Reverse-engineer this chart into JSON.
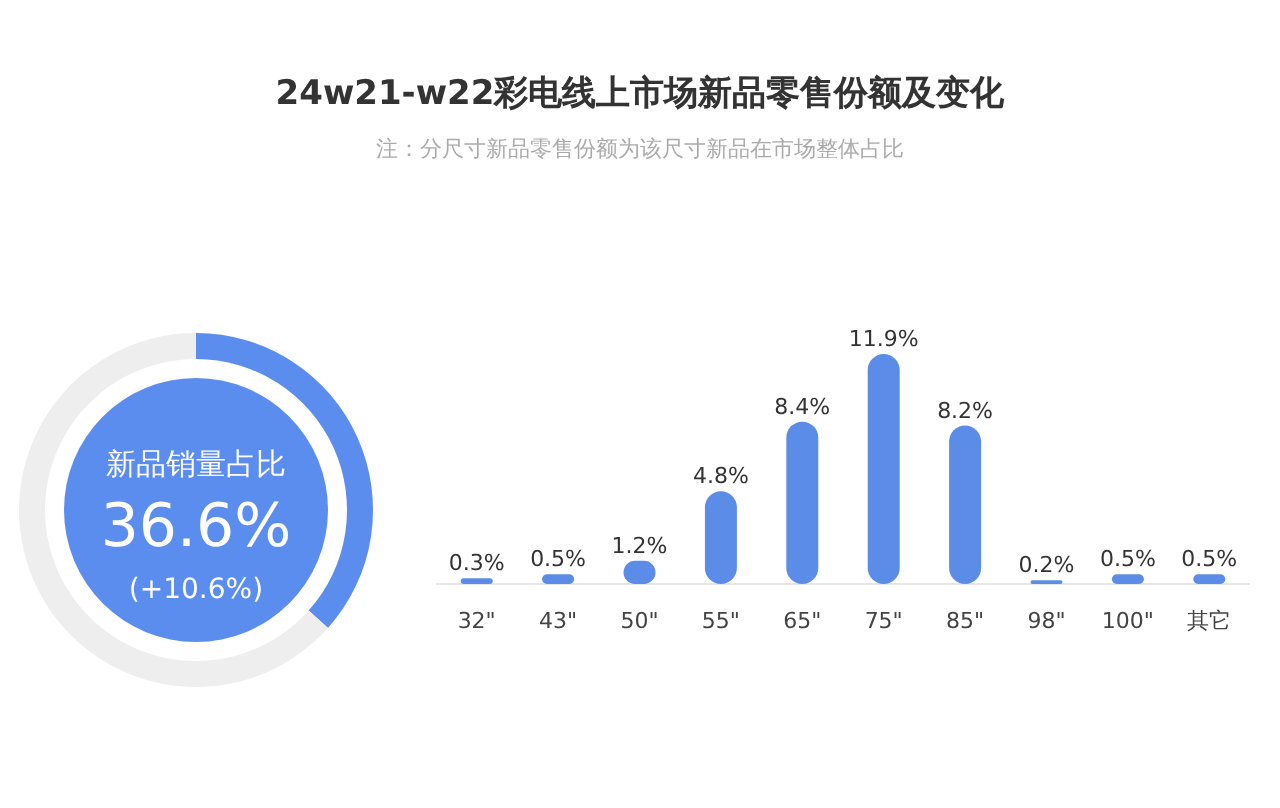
{
  "chart_data": [
    {
      "type": "donut",
      "categories": [
        "新品销量占比",
        null
      ],
      "values": [
        36.6,
        63.4
      ],
      "colors": [
        "#5b8def",
        "#eeeeee"
      ],
      "value_labels": [
        "36.6%",
        null
      ],
      "annotations": [
        "(+10.6%)"
      ]
    },
    {
      "type": "bar",
      "title": "24w21-w22彩电线上市场新品零售份额及变化",
      "subtitle": "注：分尺寸新品零售份额为该尺寸新品在市场整体占比",
      "categories": [
        "32\"",
        "43\"",
        "50\"",
        "55\"",
        "65\"",
        "75\"",
        "85\"",
        "98\"",
        "100\"",
        "其它"
      ],
      "values": [
        0.3,
        0.5,
        1.2,
        4.8,
        8.4,
        11.9,
        8.2,
        0.2,
        0.5,
        0.5
      ],
      "color": "#5b8de8",
      "value_labels": [
        "0.3%",
        "0.5%",
        "1.2%",
        "4.8%",
        "8.4%",
        "11.9%",
        "8.2%",
        "0.2%",
        "0.5%",
        "0.5%"
      ]
    }
  ]
}
